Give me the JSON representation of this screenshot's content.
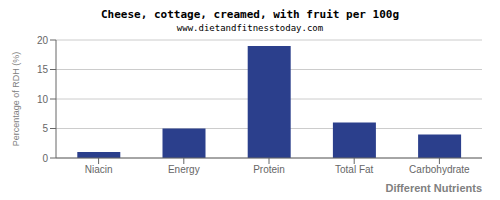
{
  "chart_data": {
    "type": "bar",
    "title": "Cheese, cottage, creamed, with fruit per 100g",
    "subtitle": "www.dietandfitnesstoday.com",
    "xlabel": "Different Nutrients",
    "ylabel": "Percentage of RDH (%)",
    "categories": [
      "Niacin",
      "Energy",
      "Protein",
      "Total Fat",
      "Carbohydrate"
    ],
    "values": [
      1,
      5,
      19,
      6,
      4
    ],
    "color": "#2b3f8c",
    "ylim": [
      0,
      20
    ],
    "yticks": [
      0,
      5,
      10,
      15,
      20
    ],
    "grid": true
  }
}
